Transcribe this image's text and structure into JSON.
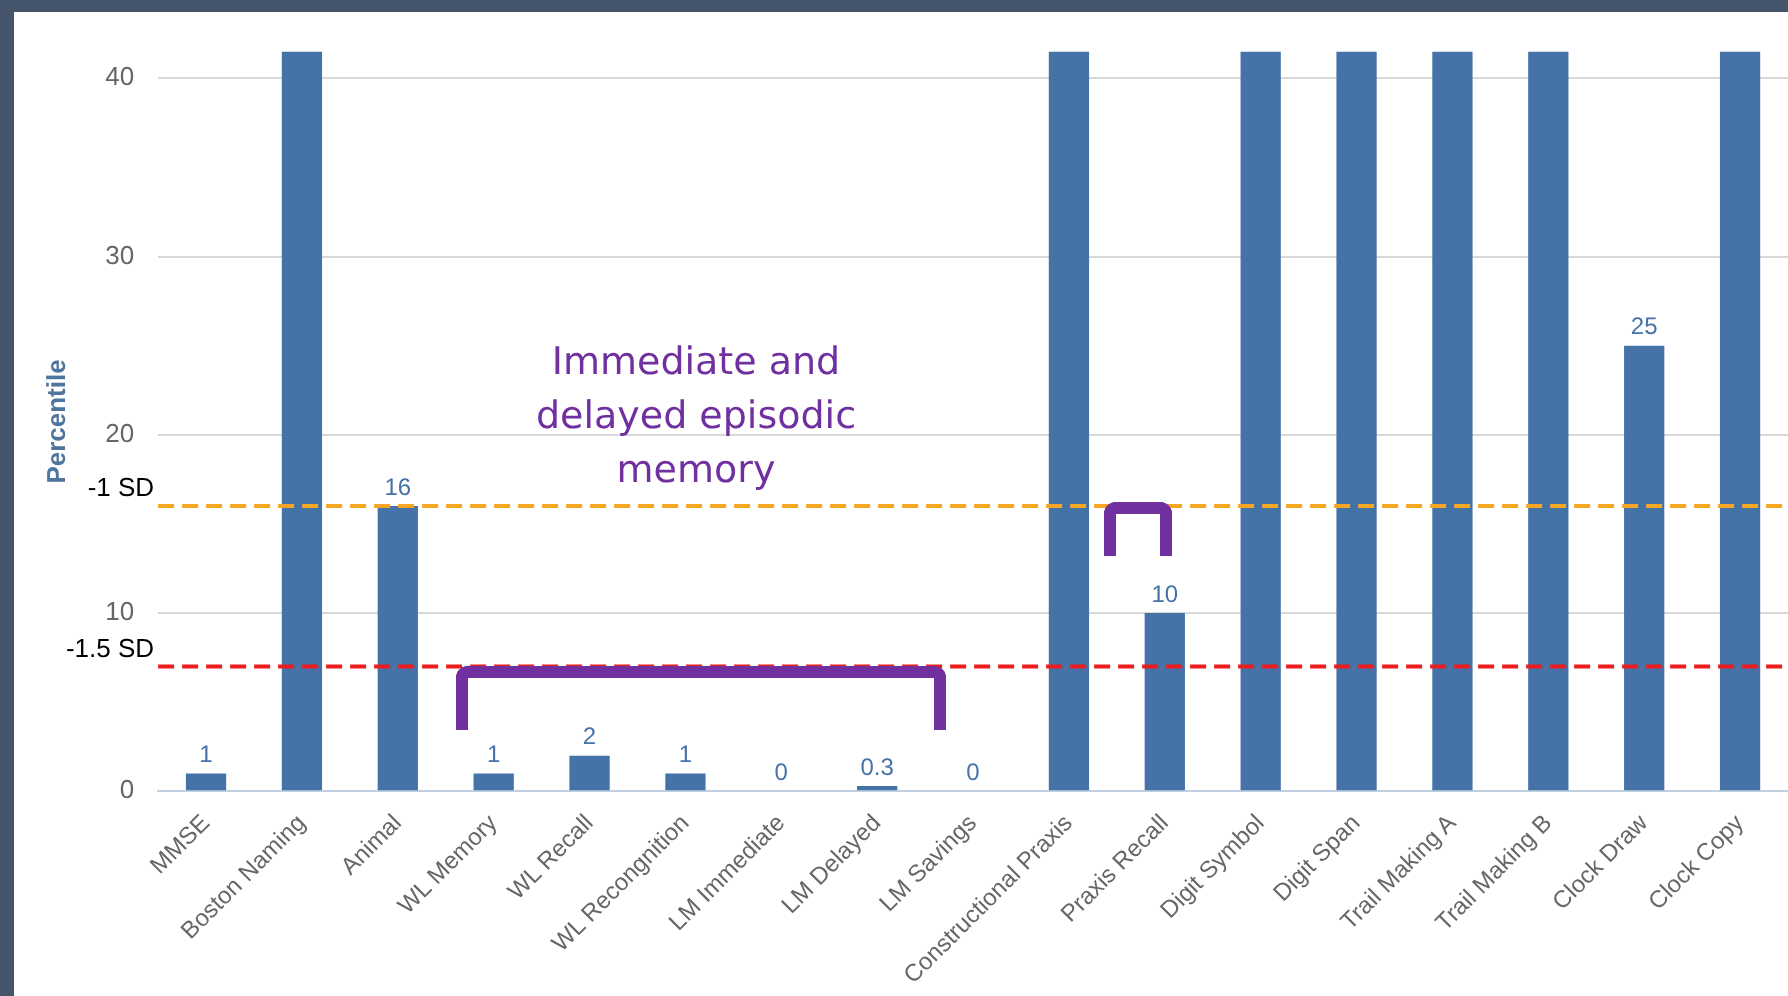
{
  "chart_data": {
    "type": "bar",
    "ylabel": "Percentile",
    "categories": [
      "MMSE",
      "Boston Naming",
      "Animal",
      "WL Memory",
      "WL Recall",
      "WL Recongnition",
      "LM Immediate",
      "LM Delayed",
      "LM Savings",
      "Constructional Praxis",
      "Praxis Recall",
      "Digit Symbol",
      "Digit Span",
      "Trail Making A",
      "Trail Making B",
      "Clock Draw",
      "Clock Copy"
    ],
    "values": [
      1,
      41.5,
      16,
      1,
      2,
      1,
      0,
      0.3,
      0,
      41.5,
      10,
      41.5,
      41.5,
      41.5,
      41.5,
      25,
      41.5
    ],
    "value_labels": [
      "1",
      null,
      "16",
      "1",
      "2",
      "1",
      "0",
      "0.3",
      "0",
      null,
      "10",
      null,
      null,
      null,
      null,
      "25",
      null
    ],
    "color": "#4572a7",
    "ylim": [
      0,
      41.5
    ],
    "yticks": [
      0,
      10,
      20,
      30,
      40
    ],
    "grid": "y",
    "legend": false,
    "ref_lines": [
      {
        "axis": "y",
        "value": 16,
        "label": "-1 SD",
        "color": "#f5a623",
        "line_style": "dashed"
      },
      {
        "axis": "y",
        "value": 7,
        "label": "-1.5 SD",
        "color": "#ee1c1c",
        "line_style": "dashed"
      }
    ],
    "annotations": [
      "Immediate and delayed episodic memory"
    ]
  }
}
